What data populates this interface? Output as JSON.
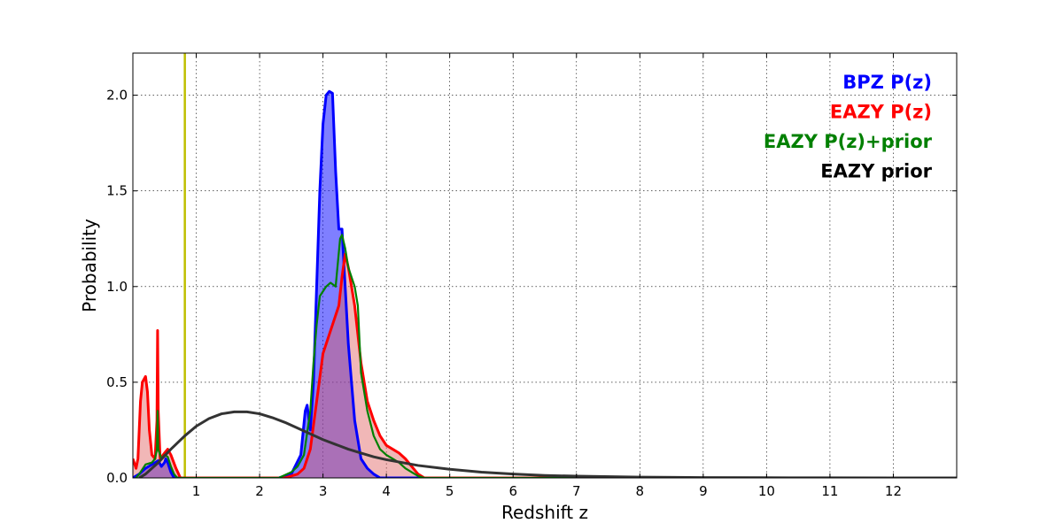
{
  "chart_data": {
    "type": "area",
    "xlabel": "Redshift z",
    "ylabel": "Probability",
    "xlim": [
      0,
      13
    ],
    "ylim": [
      0,
      2.22
    ],
    "x_ticks": [
      1,
      2,
      3,
      4,
      5,
      6,
      7,
      8,
      9,
      10,
      11,
      12
    ],
    "y_ticks": [
      0.0,
      0.5,
      1.0,
      1.5,
      2.0
    ],
    "x_tick_labels": [
      "1",
      "2",
      "3",
      "4",
      "5",
      "6",
      "7",
      "8",
      "9",
      "10",
      "11",
      "12"
    ],
    "y_tick_labels": [
      "0.0",
      "0.5",
      "1.0",
      "1.5",
      "2.0"
    ],
    "grid": true,
    "legend_position": "top-right",
    "reference_line": {
      "x": 0.82,
      "color": "#bfbf00"
    },
    "series": [
      {
        "name": "BPZ P(z)",
        "color": "#0000ff",
        "fill_color": "#0000ff",
        "fill_opacity": 0.5,
        "filled": true,
        "points": [
          [
            0,
            0
          ],
          [
            0.1,
            0.02
          ],
          [
            0.2,
            0.05
          ],
          [
            0.3,
            0.07
          ],
          [
            0.4,
            0.09
          ],
          [
            0.45,
            0.06
          ],
          [
            0.5,
            0.08
          ],
          [
            0.52,
            0.1
          ],
          [
            0.55,
            0.08
          ],
          [
            0.6,
            0.03
          ],
          [
            0.65,
            0
          ],
          [
            2.3,
            0
          ],
          [
            2.5,
            0.02
          ],
          [
            2.65,
            0.12
          ],
          [
            2.72,
            0.35
          ],
          [
            2.75,
            0.38
          ],
          [
            2.8,
            0.25
          ],
          [
            2.85,
            0.5
          ],
          [
            2.9,
            1.0
          ],
          [
            2.95,
            1.5
          ],
          [
            3.0,
            1.85
          ],
          [
            3.05,
            2.0
          ],
          [
            3.1,
            2.02
          ],
          [
            3.15,
            2.01
          ],
          [
            3.2,
            1.6
          ],
          [
            3.25,
            1.3
          ],
          [
            3.3,
            1.3
          ],
          [
            3.35,
            1.0
          ],
          [
            3.4,
            0.7
          ],
          [
            3.45,
            0.5
          ],
          [
            3.5,
            0.3
          ],
          [
            3.6,
            0.1
          ],
          [
            3.7,
            0.05
          ],
          [
            3.8,
            0.02
          ],
          [
            3.9,
            0
          ],
          [
            12.5,
            0
          ],
          [
            13,
            0
          ]
        ]
      },
      {
        "name": "EAZY P(z)",
        "color": "#ff0000",
        "fill_color": "#e06060",
        "fill_opacity": 0.45,
        "filled": true,
        "points": [
          [
            0,
            0.1
          ],
          [
            0.05,
            0.05
          ],
          [
            0.08,
            0.1
          ],
          [
            0.12,
            0.4
          ],
          [
            0.15,
            0.5
          ],
          [
            0.2,
            0.53
          ],
          [
            0.23,
            0.45
          ],
          [
            0.26,
            0.25
          ],
          [
            0.3,
            0.12
          ],
          [
            0.35,
            0.1
          ],
          [
            0.38,
            0.3
          ],
          [
            0.39,
            0.77
          ],
          [
            0.4,
            0.35
          ],
          [
            0.43,
            0.1
          ],
          [
            0.5,
            0.13
          ],
          [
            0.55,
            0.15
          ],
          [
            0.6,
            0.12
          ],
          [
            0.68,
            0.05
          ],
          [
            0.75,
            0
          ],
          [
            2.4,
            0
          ],
          [
            2.6,
            0.02
          ],
          [
            2.7,
            0.05
          ],
          [
            2.8,
            0.15
          ],
          [
            2.9,
            0.4
          ],
          [
            3.0,
            0.65
          ],
          [
            3.1,
            0.75
          ],
          [
            3.2,
            0.85
          ],
          [
            3.25,
            0.9
          ],
          [
            3.3,
            1.05
          ],
          [
            3.35,
            1.17
          ],
          [
            3.4,
            1.1
          ],
          [
            3.5,
            0.9
          ],
          [
            3.6,
            0.6
          ],
          [
            3.7,
            0.4
          ],
          [
            3.8,
            0.3
          ],
          [
            3.9,
            0.22
          ],
          [
            4.0,
            0.17
          ],
          [
            4.1,
            0.15
          ],
          [
            4.2,
            0.13
          ],
          [
            4.3,
            0.1
          ],
          [
            4.4,
            0.06
          ],
          [
            4.5,
            0.02
          ],
          [
            4.6,
            0
          ],
          [
            13,
            0
          ]
        ]
      },
      {
        "name": "EAZY P(z)+prior",
        "color": "#008000",
        "filled": false,
        "points": [
          [
            0.05,
            0
          ],
          [
            0.1,
            0.02
          ],
          [
            0.2,
            0.07
          ],
          [
            0.3,
            0.08
          ],
          [
            0.35,
            0.1
          ],
          [
            0.38,
            0.15
          ],
          [
            0.39,
            0.35
          ],
          [
            0.4,
            0.15
          ],
          [
            0.45,
            0.1
          ],
          [
            0.5,
            0.12
          ],
          [
            0.55,
            0.11
          ],
          [
            0.6,
            0.06
          ],
          [
            0.65,
            0.02
          ],
          [
            0.7,
            0
          ],
          [
            2.3,
            0
          ],
          [
            2.5,
            0.03
          ],
          [
            2.6,
            0.06
          ],
          [
            2.7,
            0.12
          ],
          [
            2.8,
            0.35
          ],
          [
            2.85,
            0.6
          ],
          [
            2.9,
            0.8
          ],
          [
            2.95,
            0.95
          ],
          [
            3.05,
            1.0
          ],
          [
            3.12,
            1.02
          ],
          [
            3.2,
            1.0
          ],
          [
            3.27,
            1.25
          ],
          [
            3.3,
            1.27
          ],
          [
            3.35,
            1.2
          ],
          [
            3.4,
            1.1
          ],
          [
            3.5,
            1.0
          ],
          [
            3.55,
            0.9
          ],
          [
            3.6,
            0.55
          ],
          [
            3.7,
            0.35
          ],
          [
            3.8,
            0.22
          ],
          [
            3.9,
            0.15
          ],
          [
            4.0,
            0.12
          ],
          [
            4.1,
            0.1
          ],
          [
            4.2,
            0.08
          ],
          [
            4.3,
            0.05
          ],
          [
            4.4,
            0.03
          ],
          [
            4.5,
            0.01
          ],
          [
            4.6,
            0
          ],
          [
            13,
            0
          ]
        ]
      },
      {
        "name": "EAZY prior",
        "color": "#333333",
        "filled": false,
        "points": [
          [
            0.1,
            0
          ],
          [
            0.2,
            0.02
          ],
          [
            0.4,
            0.08
          ],
          [
            0.6,
            0.15
          ],
          [
            0.82,
            0.22
          ],
          [
            1.0,
            0.27
          ],
          [
            1.2,
            0.31
          ],
          [
            1.4,
            0.335
          ],
          [
            1.6,
            0.345
          ],
          [
            1.8,
            0.345
          ],
          [
            2.0,
            0.335
          ],
          [
            2.2,
            0.315
          ],
          [
            2.4,
            0.29
          ],
          [
            2.6,
            0.26
          ],
          [
            2.8,
            0.23
          ],
          [
            3.0,
            0.2
          ],
          [
            3.2,
            0.175
          ],
          [
            3.4,
            0.15
          ],
          [
            3.6,
            0.13
          ],
          [
            3.8,
            0.11
          ],
          [
            4.0,
            0.095
          ],
          [
            4.5,
            0.065
          ],
          [
            5.0,
            0.045
          ],
          [
            5.5,
            0.03
          ],
          [
            6.0,
            0.02
          ],
          [
            6.5,
            0.013
          ],
          [
            7.0,
            0.009
          ],
          [
            8.0,
            0.004
          ],
          [
            9.0,
            0.002
          ],
          [
            10.0,
            0.001
          ],
          [
            11,
            0.0005
          ],
          [
            12,
            0
          ],
          [
            13,
            0
          ]
        ]
      }
    ]
  },
  "legend": [
    {
      "label": "BPZ P(z)",
      "color": "#0000ff"
    },
    {
      "label": "EAZY P(z)",
      "color": "#ff0000"
    },
    {
      "label": "EAZY P(z)+prior",
      "color": "#008000"
    },
    {
      "label": "EAZY prior",
      "color": "#000000"
    }
  ]
}
